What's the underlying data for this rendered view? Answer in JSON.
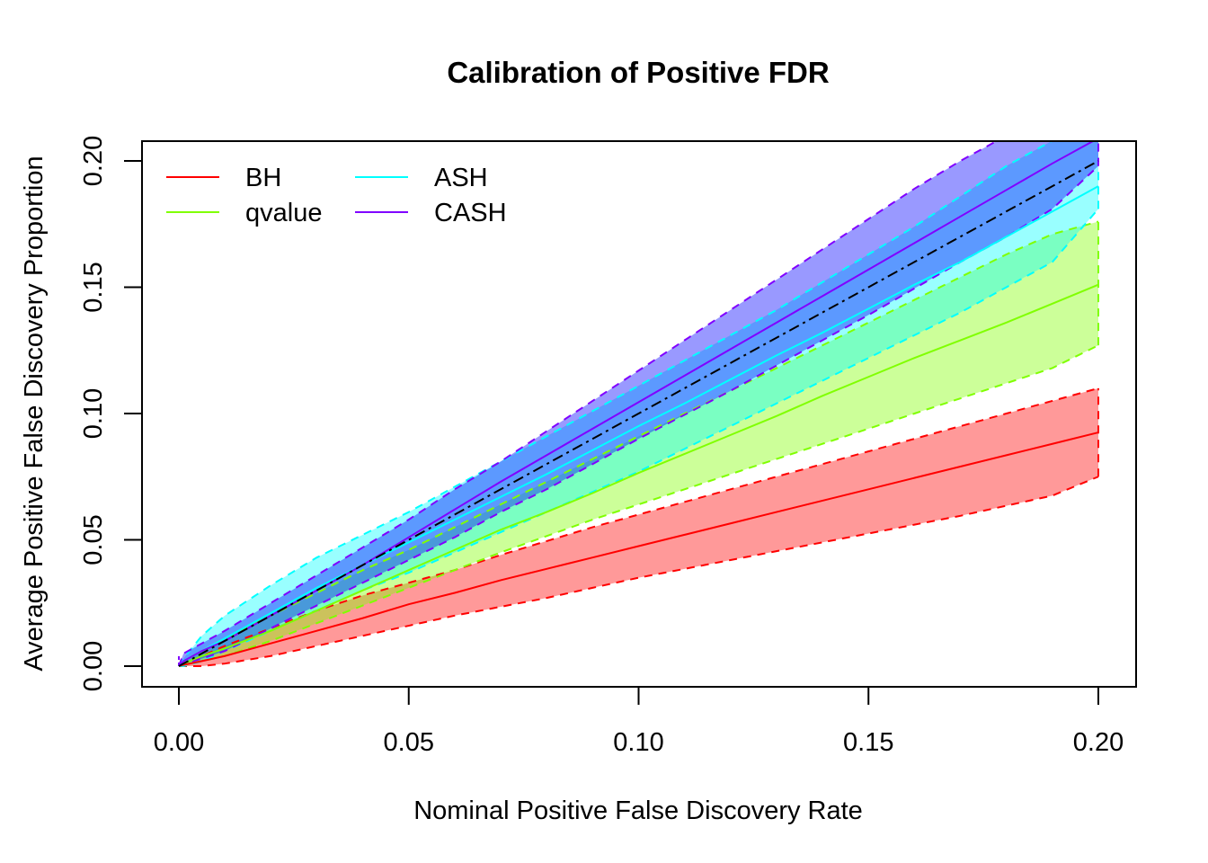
{
  "chart_data": {
    "type": "line",
    "title": "Calibration of Positive FDR",
    "xlabel": "Nominal Positive False Discovery Rate",
    "ylabel": "Average Positive False Discovery Proportion",
    "xlim": [
      -0.008,
      0.208
    ],
    "ylim": [
      -0.008,
      0.208
    ],
    "xticks": [
      0.0,
      0.05,
      0.1,
      0.15,
      0.2
    ],
    "xtick_labels": [
      "0.00",
      "0.05",
      "0.10",
      "0.15",
      "0.20"
    ],
    "yticks": [
      0.0,
      0.05,
      0.1,
      0.15,
      0.2
    ],
    "ytick_labels": [
      "0.00",
      "0.05",
      "0.10",
      "0.15",
      "0.20"
    ],
    "grid": false,
    "legend_position": "top-left",
    "reference_line": {
      "name": "y = x",
      "style": "dashdot",
      "color": "#000000"
    },
    "x": [
      0.001,
      0.005,
      0.01,
      0.02,
      0.03,
      0.04,
      0.05,
      0.06,
      0.07,
      0.08,
      0.09,
      0.1,
      0.11,
      0.12,
      0.13,
      0.14,
      0.15,
      0.16,
      0.17,
      0.18,
      0.19,
      0.2
    ],
    "series": [
      {
        "name": "BH",
        "color": "#FF0000",
        "fill": "#FF0000",
        "values": [
          0.0005,
          0.002,
          0.004,
          0.009,
          0.014,
          0.019,
          0.0245,
          0.029,
          0.034,
          0.0385,
          0.043,
          0.0475,
          0.052,
          0.0565,
          0.061,
          0.0655,
          0.07,
          0.0745,
          0.079,
          0.0835,
          0.088,
          0.0925
        ],
        "lower": [
          0.0,
          0.0,
          0.001,
          0.004,
          0.008,
          0.012,
          0.016,
          0.02,
          0.0235,
          0.027,
          0.031,
          0.035,
          0.0385,
          0.042,
          0.0455,
          0.049,
          0.0525,
          0.056,
          0.0595,
          0.0635,
          0.0675,
          0.075
        ],
        "upper": [
          0.001,
          0.004,
          0.008,
          0.015,
          0.022,
          0.028,
          0.033,
          0.038,
          0.044,
          0.0495,
          0.055,
          0.06,
          0.065,
          0.07,
          0.075,
          0.08,
          0.085,
          0.09,
          0.095,
          0.1,
          0.105,
          0.11
        ]
      },
      {
        "name": "qvalue",
        "color": "#80FF00",
        "fill": "#80FF00",
        "values": [
          0.001,
          0.004,
          0.007,
          0.014,
          0.022,
          0.03,
          0.038,
          0.046,
          0.054,
          0.061,
          0.0685,
          0.0765,
          0.084,
          0.0915,
          0.099,
          0.107,
          0.1145,
          0.122,
          0.129,
          0.136,
          0.1435,
          0.151
        ],
        "lower": [
          0.0,
          0.002,
          0.004,
          0.01,
          0.017,
          0.024,
          0.031,
          0.038,
          0.045,
          0.0515,
          0.058,
          0.064,
          0.07,
          0.076,
          0.082,
          0.088,
          0.094,
          0.1,
          0.106,
          0.112,
          0.118,
          0.127
        ],
        "upper": [
          0.002,
          0.006,
          0.011,
          0.02,
          0.029,
          0.038,
          0.046,
          0.055,
          0.064,
          0.073,
          0.082,
          0.091,
          0.1,
          0.109,
          0.118,
          0.127,
          0.136,
          0.145,
          0.154,
          0.163,
          0.171,
          0.176
        ]
      },
      {
        "name": "ASH",
        "color": "#00FFFF",
        "fill": "#00FFFF",
        "values": [
          0.002,
          0.006,
          0.011,
          0.021,
          0.031,
          0.04,
          0.049,
          0.058,
          0.067,
          0.076,
          0.0855,
          0.095,
          0.104,
          0.1135,
          0.123,
          0.132,
          0.1415,
          0.151,
          0.16,
          0.17,
          0.18,
          0.19
        ],
        "lower": [
          0.0,
          0.002,
          0.006,
          0.014,
          0.022,
          0.03,
          0.037,
          0.045,
          0.053,
          0.061,
          0.069,
          0.077,
          0.086,
          0.095,
          0.104,
          0.113,
          0.122,
          0.131,
          0.14,
          0.15,
          0.16,
          0.181
        ],
        "upper": [
          0.003,
          0.012,
          0.02,
          0.032,
          0.043,
          0.052,
          0.061,
          0.071,
          0.081,
          0.091,
          0.101,
          0.111,
          0.121,
          0.131,
          0.141,
          0.152,
          0.163,
          0.174,
          0.186,
          0.198,
          0.208,
          0.215
        ]
      },
      {
        "name": "CASH",
        "color": "#8000FF",
        "fill": "#0000FF",
        "values": [
          0.002,
          0.006,
          0.01,
          0.02,
          0.03,
          0.04,
          0.051,
          0.062,
          0.073,
          0.0835,
          0.094,
          0.1045,
          0.115,
          0.1255,
          0.136,
          0.1465,
          0.157,
          0.1675,
          0.178,
          0.1885,
          0.199,
          0.209
        ],
        "lower": [
          0.001,
          0.003,
          0.006,
          0.015,
          0.024,
          0.033,
          0.042,
          0.051,
          0.061,
          0.07,
          0.08,
          0.09,
          0.0995,
          0.109,
          0.119,
          0.129,
          0.139,
          0.1495,
          0.16,
          0.17,
          0.181,
          0.198
        ],
        "upper": [
          0.005,
          0.009,
          0.014,
          0.025,
          0.036,
          0.047,
          0.058,
          0.07,
          0.081,
          0.093,
          0.105,
          0.117,
          0.129,
          0.141,
          0.153,
          0.165,
          0.177,
          0.189,
          0.2,
          0.21,
          0.218,
          0.225
        ]
      }
    ],
    "legend": [
      {
        "name": "BH",
        "color": "#FF0000"
      },
      {
        "name": "qvalue",
        "color": "#80FF00"
      },
      {
        "name": "ASH",
        "color": "#00FFFF"
      },
      {
        "name": "CASH",
        "color": "#8000FF"
      }
    ]
  }
}
